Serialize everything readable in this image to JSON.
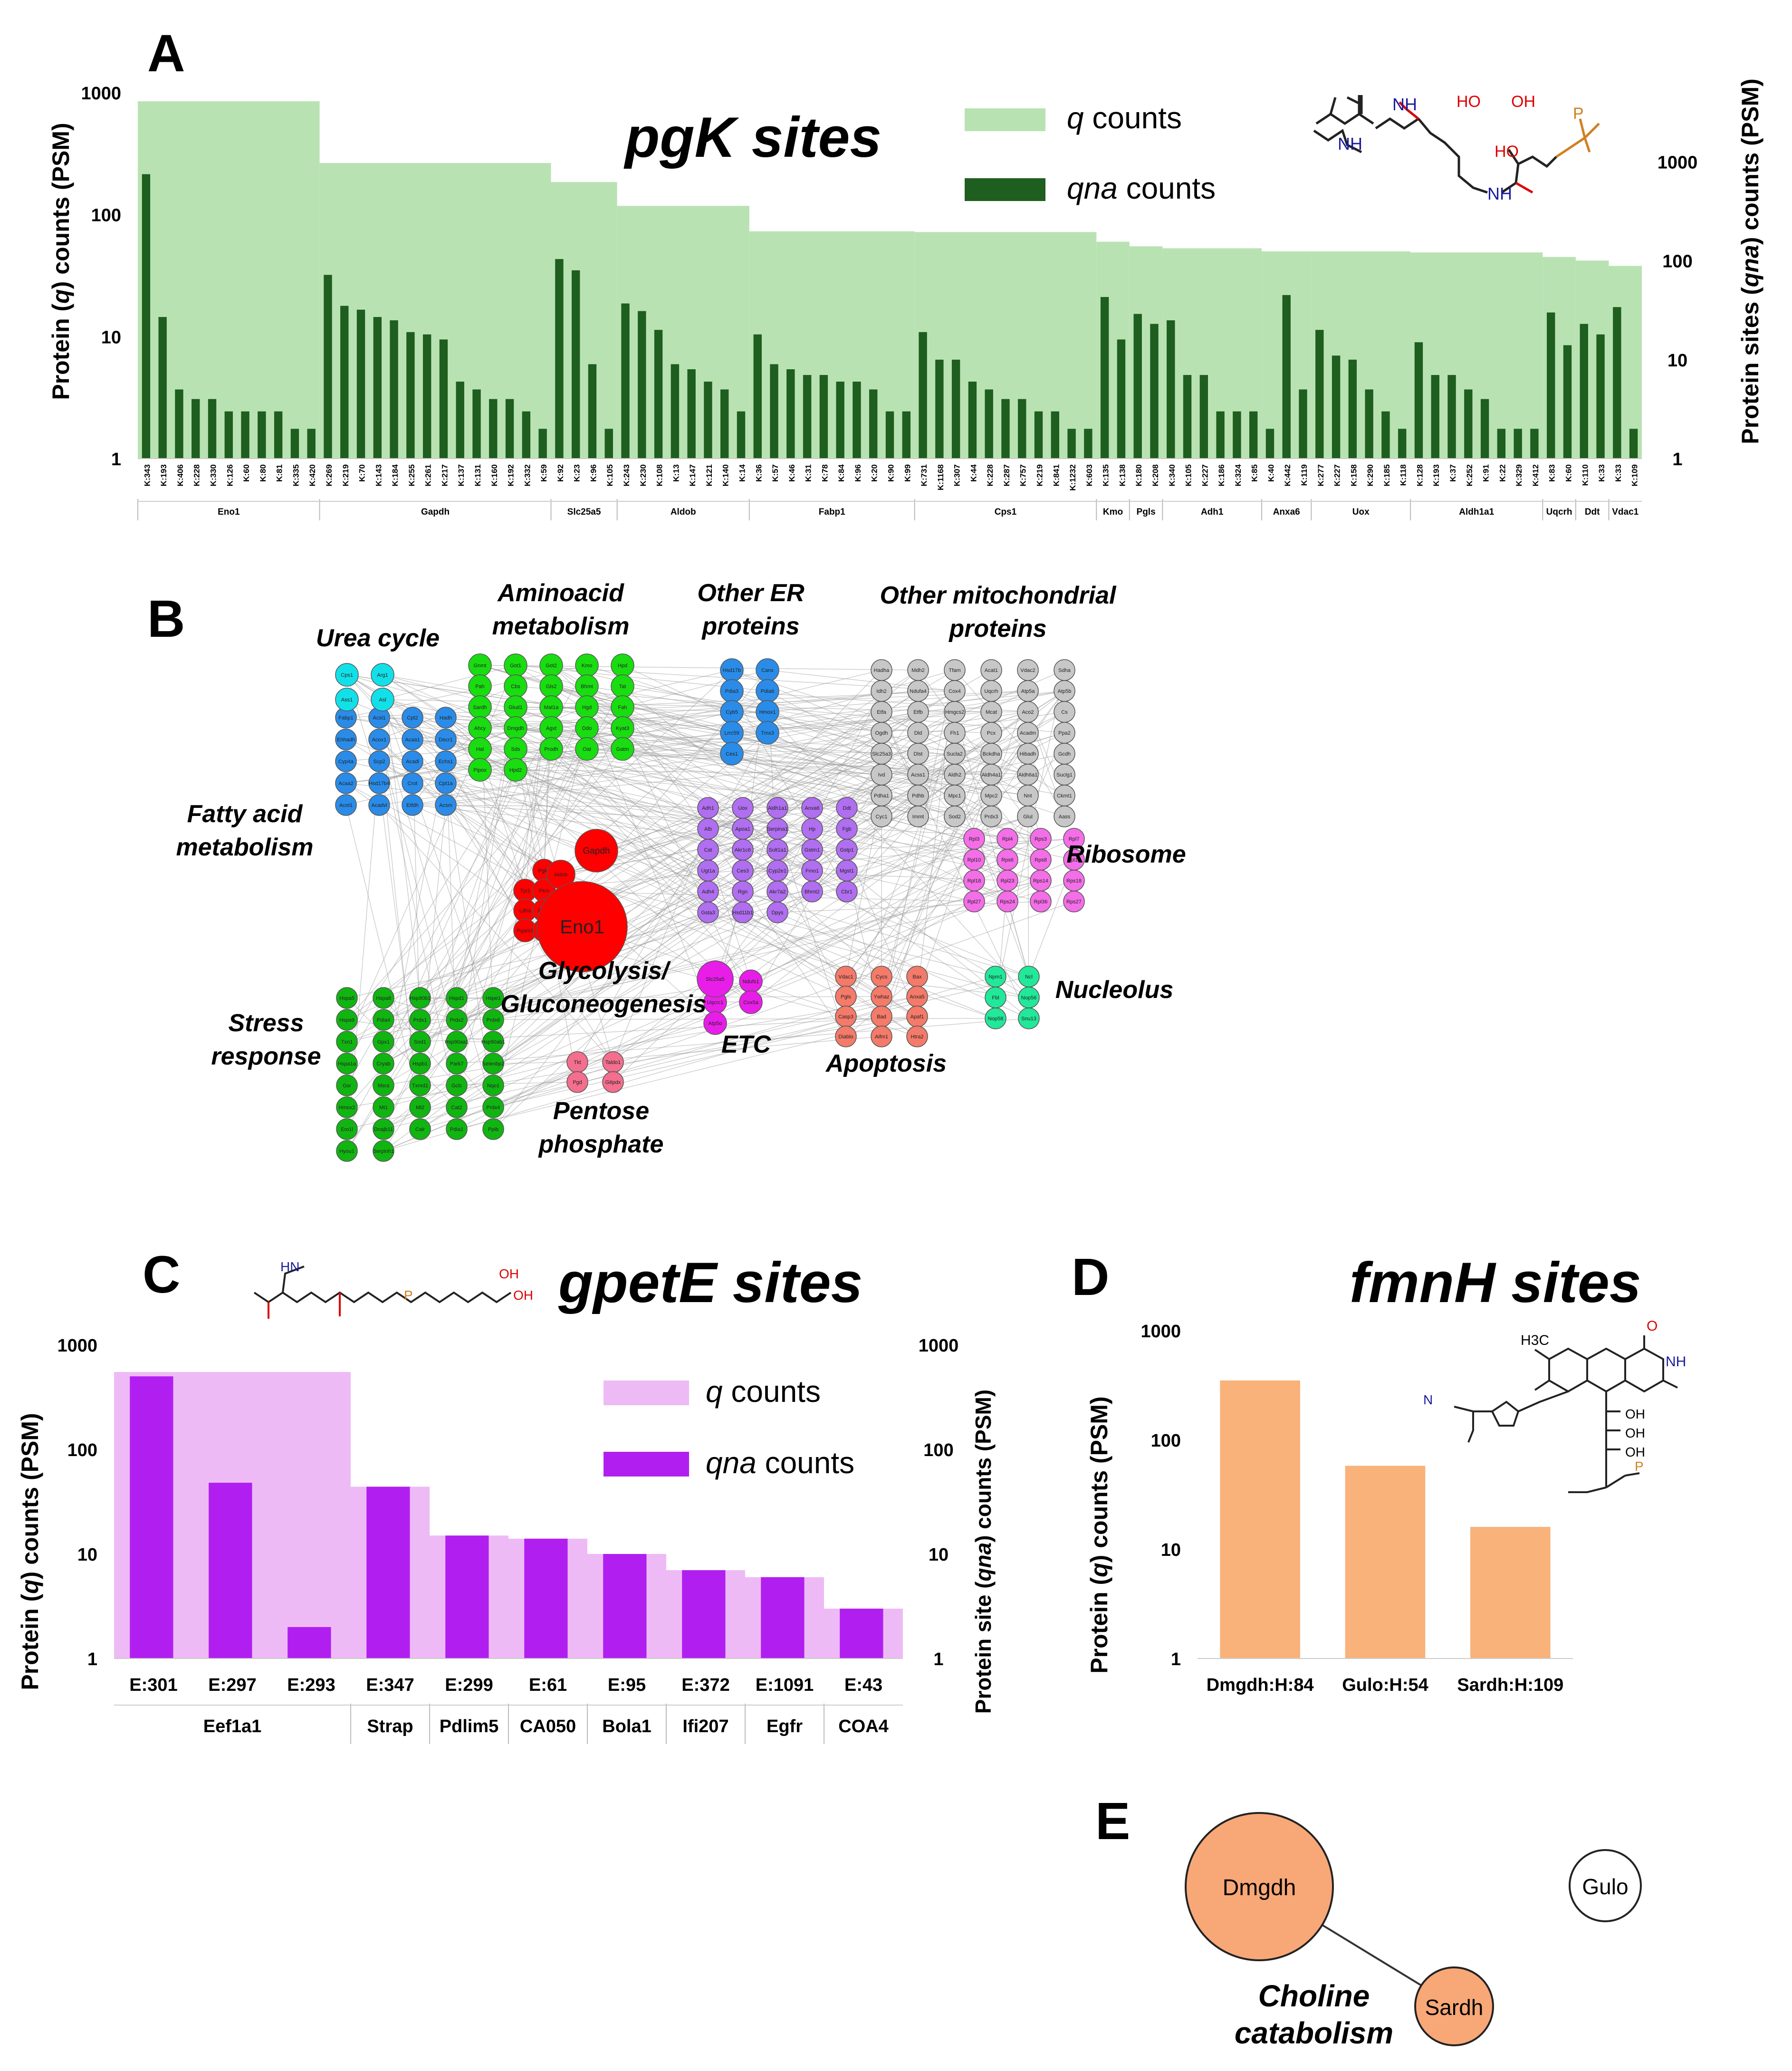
{
  "colors": {
    "q_green": "#b9e2b3",
    "qna_green": "#1e5e1e",
    "q_pink": "#eebaf6",
    "qna_purple": "#b11ff0",
    "fmn_orange": "#f8b27a",
    "node_orange": "#f8a777",
    "glycolysis_red": "#ff0000",
    "network_edge": "#9a9a9a"
  },
  "panel_labels": {
    "a": "A",
    "b": "B",
    "c": "C",
    "d": "D",
    "e": "E"
  },
  "panel_a": {
    "title": "pgK sites",
    "legend": {
      "q": "counts",
      "q_var": "q",
      "qna": "counts",
      "qna_var": "qna"
    },
    "ylabel_left": {
      "pre": "Protein (",
      "var": "q",
      "post": ") counts (PSM)"
    },
    "ylabel_right": {
      "pre": "Protein sites  (",
      "var": "qna",
      "post": ") counts (PSM)"
    },
    "left_ticks": [
      "1",
      "10",
      "100",
      "1000"
    ],
    "right_ticks": [
      "1",
      "10",
      "100",
      "1000"
    ],
    "structure_icon": "pgk-structure-icon"
  },
  "chart_data": [
    {
      "id": "A",
      "type": "bar",
      "title": "pgK sites",
      "ylabel": "Protein (q) counts (PSM)",
      "ylabel_right": "Protein sites  (qna) counts (PSM)",
      "yscale": "log",
      "ylim": [
        1,
        1000
      ],
      "ylim_right": [
        1,
        5000
      ],
      "legend": "top-center",
      "series": [
        {
          "name": "q counts"
        },
        {
          "name": "qna counts"
        }
      ],
      "groups": [
        {
          "protein": "Eno1",
          "q": 850,
          "sites": [
            "K:343",
            "K:193",
            "K:406",
            "K:228",
            "K:330",
            "K:126",
            "K:60",
            "K:80",
            "K:81",
            "K:335",
            "K:420"
          ],
          "qna": [
            750,
            27,
            5,
            4,
            4,
            3,
            3,
            3,
            3,
            2,
            2
          ]
        },
        {
          "protein": "Gapdh",
          "q": 265,
          "sites": [
            "K:269",
            "K:219",
            "K:70",
            "K:143",
            "K:184",
            "K:255",
            "K:261",
            "K:217",
            "K:137",
            "K:131",
            "K:160",
            "K:192",
            "K:332",
            "K:59"
          ],
          "qna": [
            72,
            35,
            32,
            27,
            25,
            19,
            18,
            16,
            6,
            5,
            4,
            4,
            3,
            2
          ]
        },
        {
          "protein": "Slc25a5",
          "q": 185,
          "sites": [
            "K:92",
            "K:23",
            "K:96",
            "K:105"
          ],
          "qna": [
            104,
            80,
            9,
            2
          ]
        },
        {
          "protein": "Aldob",
          "q": 118,
          "sites": [
            "K:243",
            "K:230",
            "K:108",
            "K:13",
            "K:147",
            "K:121",
            "K:140",
            "K:14"
          ],
          "qna": [
            37,
            31,
            20,
            9,
            8,
            6,
            5,
            3
          ]
        },
        {
          "protein": "Fabp1",
          "q": 73,
          "sites": [
            "K:36",
            "K:57",
            "K:46",
            "K:31",
            "K:78",
            "K:84",
            "K:96",
            "K:20",
            "K:90",
            "K:99"
          ],
          "qna": [
            18,
            9,
            8,
            7,
            7,
            6,
            6,
            5,
            3,
            3
          ]
        },
        {
          "protein": "Cps1",
          "q": 72,
          "sites": [
            "K:731",
            "K:1168",
            "K:307",
            "K:44",
            "K:228",
            "K:287",
            "K:757",
            "K:219",
            "K:841",
            "K:1232",
            "K:603"
          ],
          "qna": [
            19,
            10,
            10,
            6,
            5,
            4,
            4,
            3,
            3,
            2,
            2
          ]
        },
        {
          "protein": "Kmo",
          "q": 60,
          "sites": [
            "K:135",
            "K:138"
          ],
          "qna": [
            43,
            16
          ]
        },
        {
          "protein": "Pgls",
          "q": 55,
          "sites": [
            "K:180",
            "K:208"
          ],
          "qna": [
            29,
            23
          ]
        },
        {
          "protein": "Adh1",
          "q": 53,
          "sites": [
            "K:340",
            "K:105",
            "K:227",
            "K:186",
            "K:324",
            "K:85"
          ],
          "qna": [
            25,
            7,
            7,
            3,
            3,
            3
          ]
        },
        {
          "protein": "Anxa6",
          "q": 50,
          "sites": [
            "K:40",
            "K:442",
            "K:119"
          ],
          "qna": [
            2,
            45,
            5
          ]
        },
        {
          "protein": "Uox",
          "q": 50,
          "sites": [
            "K:277",
            "K:227",
            "K:158",
            "K:290",
            "K:185",
            "K:118"
          ],
          "qna": [
            20,
            11,
            10,
            5,
            3,
            2
          ]
        },
        {
          "protein": "Aldh1a1",
          "q": 49,
          "sites": [
            "K:128",
            "K:193",
            "K:37",
            "K:252",
            "K:91",
            "K:22",
            "K:329",
            "K:412"
          ],
          "qna": [
            15,
            7,
            7,
            5,
            4,
            2,
            2,
            2
          ]
        },
        {
          "protein": "Uqcrh",
          "q": 45,
          "sites": [
            "K:83",
            "K:60"
          ],
          "qna": [
            30,
            14
          ]
        },
        {
          "protein": "Ddt",
          "q": 42,
          "sites": [
            "K:110",
            "K:33"
          ],
          "qna": [
            23,
            18
          ]
        },
        {
          "protein": "Vdac1",
          "q": 38,
          "sites": [
            "K:33",
            "K:109"
          ],
          "qna": [
            34,
            2
          ]
        }
      ]
    },
    {
      "id": "C",
      "type": "bar",
      "title": "gpetE sites",
      "ylabel": "Protein (q) counts (PSM)",
      "ylabel_right": "Protein site  (qna) counts (PSM)",
      "yscale": "log",
      "ylim": [
        1,
        1000
      ],
      "legend": "top-right",
      "series": [
        {
          "name": "q counts"
        },
        {
          "name": "qna counts"
        }
      ],
      "groups": [
        {
          "protein": "Eef1a1",
          "q": 550,
          "sites": [
            "E:301",
            "E:297",
            "E:293"
          ],
          "qna": [
            500,
            48,
            2
          ]
        },
        {
          "protein": "Strap",
          "q": 44,
          "sites": [
            "E:347"
          ],
          "qna": [
            44
          ]
        },
        {
          "protein": "Pdlim5",
          "q": 15,
          "sites": [
            "E:299"
          ],
          "qna": [
            15
          ]
        },
        {
          "protein": "CA050",
          "q": 14,
          "sites": [
            "E:61"
          ],
          "qna": [
            14
          ]
        },
        {
          "protein": "Bola1",
          "q": 10,
          "sites": [
            "E:95"
          ],
          "qna": [
            10
          ]
        },
        {
          "protein": "Ifi207",
          "q": 7,
          "sites": [
            "E:372"
          ],
          "qna": [
            7
          ]
        },
        {
          "protein": "Egfr",
          "q": 6,
          "sites": [
            "E:1091"
          ],
          "qna": [
            6
          ]
        },
        {
          "protein": "COA4",
          "q": 3,
          "sites": [
            "E:43"
          ],
          "qna": [
            3
          ]
        }
      ]
    },
    {
      "id": "D",
      "type": "bar",
      "title": "fmnH sites",
      "ylabel": "Protein (q) counts (PSM)",
      "yscale": "log",
      "ylim": [
        1,
        1000
      ],
      "categories": [
        "Dmgdh:H:84",
        "Gulo:H:54",
        "Sardh:H:109"
      ],
      "values": [
        350,
        58,
        16
      ]
    }
  ],
  "panel_b": {
    "categories": [
      {
        "key": "urea",
        "lines": [
          "Urea cycle"
        ],
        "color": "#12e0e8",
        "nodes": [
          "Cps1",
          "Arg1",
          "Ass1",
          "Asl"
        ]
      },
      {
        "key": "amino",
        "lines": [
          "Aminoacid",
          "metabolism"
        ],
        "color": "#19dc11",
        "nodes": [
          "Gnmt",
          "Got1",
          "Got2",
          "Kmo",
          "Hpd",
          "Pah",
          "Cbs",
          "Gls2",
          "Bhmt",
          "Tat",
          "Sardh",
          "Glud1",
          "Mat1a",
          "Hgd",
          "Fah",
          "Ahcy",
          "Dmgdh",
          "Agxt",
          "Ddo",
          "Kyat3",
          "Hal",
          "Sds",
          "Prodh",
          "Oat",
          "Gatm",
          "Pipox",
          "Hpd2"
        ]
      },
      {
        "key": "er",
        "lines": [
          "Other ER",
          "proteins"
        ],
        "color": "#2a8ce8",
        "nodes": [
          "Hsd17b",
          "Canx",
          "Pdia3",
          "Pdia6",
          "Cyb5",
          "Hmox1",
          "Lrrc59",
          "Tmx3",
          "Ces1"
        ]
      },
      {
        "key": "mito",
        "lines": [
          "Other mitochondrial",
          "proteins"
        ],
        "color": "#c7c7c7",
        "nodes": [
          "Hadha",
          "Mdh2",
          "Tfam",
          "Acat1",
          "Vdac2",
          "Sdha",
          "Idh2",
          "Ndufa4",
          "Cox4",
          "Uqcrh",
          "Atp5a",
          "Atp5b",
          "Etfa",
          "Etfb",
          "Hmgcs2",
          "Mcat",
          "Aco2",
          "Cs",
          "Ogdh",
          "Dld",
          "Fh1",
          "Pcx",
          "Acadm",
          "Ppa2",
          "Slc25a3",
          "Dlst",
          "Sucla2",
          "Bckdha",
          "Hibadh",
          "Gcdh",
          "Ivd",
          "Acss1",
          "Aldh2",
          "Aldh4a1",
          "Aldh6a1",
          "Suclg1",
          "Pdha1",
          "Pdhb",
          "Mpc1",
          "Mpc2",
          "Nnt",
          "Ckmt1",
          "Cyc1",
          "Immt",
          "Sod2",
          "Prdx3",
          "Glul",
          "Aass"
        ]
      },
      {
        "key": "fatty",
        "lines": [
          "Fatty acid",
          "metabolism"
        ],
        "color": "#2a8ce8",
        "nodes": [
          "Fabp1",
          "Acsl1",
          "Cpt2",
          "Hadh",
          "Ehhadh",
          "Acox1",
          "Acaa1",
          "Decr1",
          "Cyp4a",
          "Scp2",
          "Acadl",
          "Echs1",
          "Acaa2",
          "Hsd17b4",
          "Crot",
          "Cpt1a",
          "Acot1",
          "Acadvl",
          "Etfdh",
          "Acsm"
        ]
      },
      {
        "key": "glyco",
        "lines": [
          "Glycolysis/",
          "Gluconeogenesis"
        ],
        "color": "#ff0000",
        "nodes": [
          "Eno1",
          "Gapdh",
          "Aldob",
          "Pgk1",
          "Tpi1",
          "Pkm",
          "Ldha",
          "Fbp1",
          "Pgam1",
          "Pck1"
        ]
      },
      {
        "key": "misc",
        "lines": [],
        "color": "#b06ef0",
        "nodes": [
          "Adh1",
          "Uox",
          "Aldh1a1",
          "Anxa6",
          "Ddt",
          "Alb",
          "Apoa1",
          "Serpina1",
          "Hp",
          "Fgb",
          "Cat",
          "Akr1c6",
          "Sult1a1",
          "Gstm1",
          "Gstp1",
          "Ugt1a",
          "Ces3",
          "Cyp2e1",
          "Fmo1",
          "Mgst1",
          "Adh4",
          "Rgn",
          "Akr7a2",
          "Bhmt2",
          "Cbr1",
          "Gsta3",
          "Hsd11b1",
          "Dpys"
        ]
      },
      {
        "key": "ribo",
        "lines": [
          "Ribosome"
        ],
        "color": "#f46ee8",
        "nodes": [
          "Rpl3",
          "Rpl4",
          "Rps3",
          "Rpl7",
          "Rpl10",
          "Rps6",
          "Rps8",
          "Rpl13",
          "Rpl18",
          "Rpl23",
          "Rps14",
          "Rps18",
          "Rpl27",
          "Rps24",
          "Rpl36",
          "Rps27"
        ]
      },
      {
        "key": "nucleolus",
        "lines": [
          "Nucleolus"
        ],
        "color": "#22e89a",
        "nodes": [
          "Npm1",
          "Ncl",
          "Fbl",
          "Nop56",
          "Nop58",
          "Snu13",
          "Dkc1",
          "Gar1"
        ]
      },
      {
        "key": "stress",
        "lines": [
          "Stress",
          "response"
        ],
        "color": "#11b511",
        "nodes": [
          "Hspa5",
          "Hspa8",
          "Hsp90b1",
          "Hspd1",
          "Hspe1",
          "Hspa9",
          "Pdia4",
          "Prdx1",
          "Prdx2",
          "Prdx6",
          "Txn1",
          "Gpx1",
          "Sod1",
          "Hsp90aa1",
          "Hsp90ab1",
          "Hspa1a",
          "Cryab",
          "Hspb1",
          "Park7",
          "Selenbp2",
          "Gsr",
          "Msra",
          "Txnrd1",
          "Gclc",
          "Nqo1",
          "Hmox2",
          "Mt1",
          "Mt2",
          "Cat2",
          "Prdx4",
          "Ero1l",
          "Dnajb11",
          "Calr",
          "Pdia1",
          "Ppib",
          "Hyou1",
          "Serpinh1"
        ]
      },
      {
        "key": "etc",
        "lines": [
          "ETC"
        ],
        "color": "#e81ee8",
        "nodes": [
          "Slc25a5",
          "Ndufs1",
          "Uqcrc1",
          "Cox5a",
          "Atp5o"
        ]
      },
      {
        "key": "apoptosis",
        "lines": [
          "Apoptosis"
        ],
        "color": "#f47a6a",
        "nodes": [
          "Vdac1",
          "Cycs",
          "Bax",
          "Pgls",
          "Ywhaz",
          "Anxa5",
          "Casp3",
          "Bad",
          "Apaf1",
          "Diablo",
          "Aifm1",
          "Htra2"
        ]
      },
      {
        "key": "pentose",
        "lines": [
          "Pentose",
          "phosphate"
        ],
        "color": "#f46e8e",
        "nodes": [
          "Tkt",
          "Taldo1",
          "Pgd",
          "G6pdx"
        ]
      }
    ],
    "big_node_labels": [
      "Eno1",
      "Gapdh",
      "Aldob",
      "Slc25a5"
    ]
  },
  "panel_c": {
    "title": "gpetE sites",
    "legend": {
      "q": "counts",
      "q_var": "q",
      "qna": "counts",
      "qna_var": "qna"
    },
    "ylabel_left": {
      "pre": "Protein (",
      "var": "q",
      "post": ") counts (PSM)"
    },
    "ylabel_right": {
      "pre": "Protein site  (",
      "var": "qna",
      "post": ") counts (PSM)"
    },
    "left_ticks": [
      "1",
      "10",
      "100",
      "1000"
    ],
    "right_ticks": [
      "1",
      "10",
      "100",
      "1000"
    ],
    "structure_icon": "gpete-structure-icon"
  },
  "panel_d": {
    "title": "fmnH sites",
    "ylabel": {
      "pre": "Protein (",
      "var": "q",
      "post": ") counts (PSM)"
    },
    "ticks": [
      "1",
      "10",
      "100",
      "1000"
    ],
    "structure_icon": "fmnh-structure-icon"
  },
  "panel_e": {
    "nodes": [
      "Dmgdh",
      "Gulo",
      "Sardh"
    ],
    "label_lines": [
      "Choline",
      "catabolism"
    ]
  }
}
